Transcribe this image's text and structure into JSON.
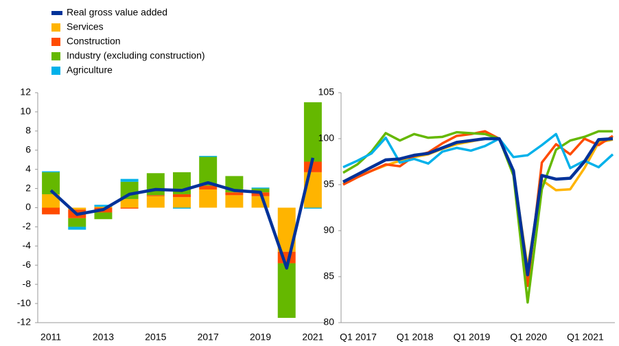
{
  "chart_data": [
    {
      "type": "bar",
      "categories": [
        "2011",
        null,
        "2013",
        null,
        "2015",
        null,
        "2017",
        null,
        "2019",
        null,
        "2021"
      ],
      "ylim": [
        -12,
        12
      ],
      "yticks": [
        -12,
        -10,
        -8,
        -6,
        -4,
        -2,
        0,
        2,
        4,
        6,
        8,
        10,
        12
      ],
      "series": [
        {
          "name": "Real gross value added",
          "type": "line",
          "color": "#003299",
          "values": [
            1.8,
            -0.7,
            -0.2,
            1.4,
            1.9,
            1.8,
            2.6,
            1.8,
            1.6,
            -6.3,
            5.2
          ]
        },
        {
          "name": "Services",
          "color": "#ffb400",
          "values": [
            1.4,
            -0.2,
            0.1,
            0.9,
            1.2,
            1.1,
            1.9,
            1.3,
            1.2,
            -4.6,
            3.7
          ]
        },
        {
          "name": "Construction",
          "color": "#ff4b00",
          "values": [
            -0.7,
            -0.9,
            -0.5,
            -0.1,
            0.1,
            0.3,
            0.4,
            0.3,
            0.4,
            -1.2,
            1.1
          ]
        },
        {
          "name": "Industry (excluding construction)",
          "color": "#65b800",
          "values": [
            2.3,
            -0.9,
            -0.7,
            1.8,
            2.3,
            2.3,
            3.0,
            1.7,
            0.4,
            -5.7,
            6.2
          ]
        },
        {
          "name": "Agriculture",
          "color": "#00b1ea",
          "values": [
            0.1,
            -0.3,
            0.2,
            0.3,
            0.0,
            -0.1,
            0.1,
            0.0,
            0.1,
            0.0,
            -0.1
          ]
        }
      ]
    },
    {
      "type": "line",
      "categories": [
        "Q1 2017",
        null,
        null,
        null,
        "Q1 2018",
        null,
        null,
        null,
        "Q1 2019",
        null,
        null,
        null,
        "Q1 2020",
        null,
        null,
        null,
        "Q1 2021",
        null,
        null,
        null
      ],
      "ylim": [
        80,
        105
      ],
      "yticks": [
        80,
        85,
        90,
        95,
        100,
        105
      ],
      "series": [
        {
          "color": "#ffb400",
          "values": [
            95.1,
            95.9,
            96.5,
            97.1,
            97.6,
            98.0,
            98.3,
            98.9,
            99.4,
            99.7,
            100,
            100,
            96.4,
            86.0,
            95.5,
            94.4,
            94.5,
            96.8,
            99.6,
            99.9
          ]
        },
        {
          "color": "#ff4b00",
          "values": [
            95.0,
            95.8,
            96.5,
            97.2,
            97.0,
            98.1,
            98.5,
            99.5,
            100.3,
            100.5,
            100.8,
            100,
            96.2,
            84.0,
            97.4,
            99.4,
            98.3,
            100.0,
            99.3,
            100.3
          ]
        },
        {
          "color": "#65b800",
          "values": [
            96.3,
            97.2,
            98.6,
            100.6,
            99.8,
            100.5,
            100.1,
            100.2,
            100.7,
            100.6,
            100.5,
            100,
            96.0,
            82.2,
            94.5,
            98.8,
            99.8,
            100.2,
            100.8,
            100.8
          ]
        },
        {
          "color": "#00b1ea",
          "values": [
            96.9,
            97.6,
            98.4,
            100.1,
            97.4,
            97.8,
            97.3,
            98.6,
            99.0,
            98.7,
            99.2,
            100,
            98.0,
            98.2,
            99.3,
            100.5,
            96.8,
            97.6,
            96.9,
            98.3
          ]
        },
        {
          "color": "#003299",
          "values": [
            95.3,
            96.1,
            96.9,
            97.7,
            97.8,
            98.2,
            98.4,
            99.0,
            99.6,
            99.8,
            100,
            100,
            96.5,
            85.2,
            96.0,
            95.6,
            95.7,
            97.5,
            99.9,
            100.0
          ]
        }
      ]
    }
  ]
}
